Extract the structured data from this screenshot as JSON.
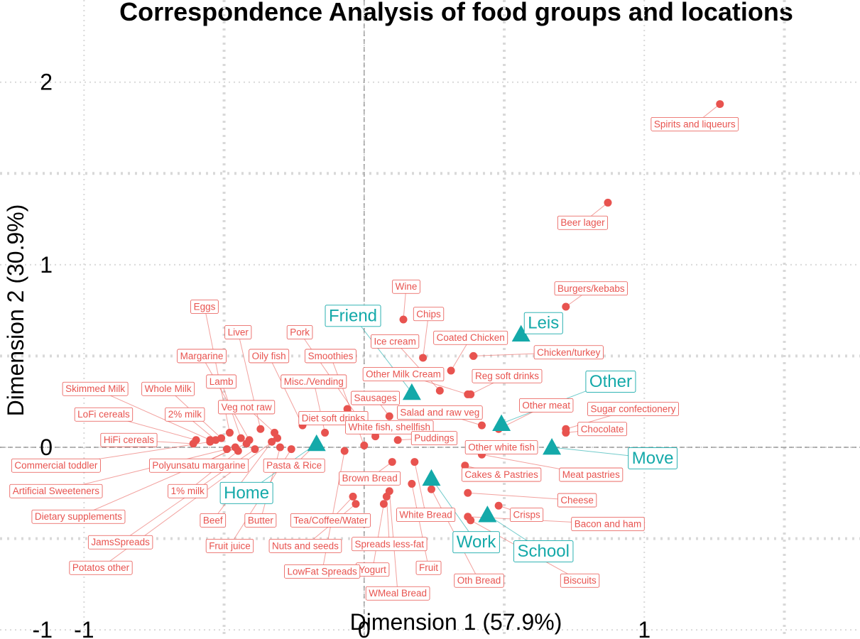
{
  "chart_data": {
    "type": "scatter",
    "title": "Correspondence Analysis of food groups and locations",
    "xlabel": "Dimension 1 (57.9%)",
    "ylabel": "Dimension 2 (30.9%)",
    "xlim": [
      -1.3,
      1.77
    ],
    "ylim": [
      -1.05,
      2.45
    ],
    "xticks": [
      -1,
      0,
      1
    ],
    "xtick_labels": [
      "-1",
      "0",
      "1"
    ],
    "yticks": [
      -1,
      0,
      1,
      2
    ],
    "ytick_labels": [
      "-1",
      "0",
      "1",
      "2"
    ],
    "grid": true,
    "zero_lines": true,
    "colors": {
      "rows": "#e8534f",
      "columns": "#14a9a9",
      "grid": "#d9d9d9",
      "zero_line": "#8a8a8a"
    },
    "series": [
      {
        "name": "rows",
        "marker": "circle",
        "points": [
          {
            "label": "Spirits and liqueurs",
            "x": 1.27,
            "y": 1.88,
            "lx": 1.18,
            "ly": 1.77
          },
          {
            "label": "Beer lager",
            "x": 0.87,
            "y": 1.34,
            "lx": 0.78,
            "ly": 1.23
          },
          {
            "label": "Burgers/kebabs",
            "x": 0.72,
            "y": 0.77,
            "lx": 0.81,
            "ly": 0.87
          },
          {
            "label": "Wine",
            "x": 0.14,
            "y": 0.7,
            "lx": 0.15,
            "ly": 0.88
          },
          {
            "label": "Chips",
            "x": 0.21,
            "y": 0.49,
            "lx": 0.23,
            "ly": 0.73
          },
          {
            "label": "Coated Chicken",
            "x": 0.31,
            "y": 0.42,
            "lx": 0.38,
            "ly": 0.6
          },
          {
            "label": "Ice cream",
            "x": 0.27,
            "y": 0.31,
            "lx": 0.11,
            "ly": 0.58
          },
          {
            "label": "Chicken/turkey",
            "x": 0.39,
            "y": 0.5,
            "lx": 0.73,
            "ly": 0.52
          },
          {
            "label": "Other Milk Cream",
            "x": 0.37,
            "y": 0.29,
            "lx": 0.14,
            "ly": 0.4
          },
          {
            "label": "Reg soft drinks",
            "x": 0.38,
            "y": 0.29,
            "lx": 0.51,
            "ly": 0.39
          },
          {
            "label": "Sausages",
            "x": 0.09,
            "y": 0.17,
            "lx": 0.04,
            "ly": 0.27
          },
          {
            "label": "Other meat",
            "x": 0.48,
            "y": 0.1,
            "lx": 0.65,
            "ly": 0.23
          },
          {
            "label": "Salad and raw veg",
            "x": 0.42,
            "y": 0.12,
            "lx": 0.27,
            "ly": 0.19
          },
          {
            "label": "Sugar confectionery",
            "x": 0.72,
            "y": 0.1,
            "lx": 0.96,
            "ly": 0.21
          },
          {
            "label": "Chocolate",
            "x": 0.72,
            "y": 0.08,
            "lx": 0.85,
            "ly": 0.1
          },
          {
            "label": "Diet soft drinks",
            "x": -0.06,
            "y": 0.21,
            "lx": -0.11,
            "ly": 0.16
          },
          {
            "label": "White fish, shellfish",
            "x": 0.04,
            "y": 0.06,
            "lx": 0.09,
            "ly": 0.11
          },
          {
            "label": "Puddings",
            "x": 0.12,
            "y": 0.04,
            "lx": 0.25,
            "ly": 0.05
          },
          {
            "label": "Other white fish",
            "x": 0.42,
            "y": -0.03,
            "lx": 0.49,
            "ly": 0.0
          },
          {
            "label": "Cakes & Pastries",
            "x": 0.36,
            "y": -0.1,
            "lx": 0.49,
            "ly": -0.15
          },
          {
            "label": "Meat pastries",
            "x": 0.42,
            "y": -0.04,
            "lx": 0.81,
            "ly": -0.15
          },
          {
            "label": "Cheese",
            "x": 0.37,
            "y": -0.25,
            "lx": 0.76,
            "ly": -0.29
          },
          {
            "label": "Crisps",
            "x": 0.48,
            "y": -0.32,
            "lx": 0.58,
            "ly": -0.37
          },
          {
            "label": "Bacon and ham",
            "x": 0.37,
            "y": -0.38,
            "lx": 0.87,
            "ly": -0.42
          },
          {
            "label": "Biscuits",
            "x": 0.38,
            "y": -0.4,
            "lx": 0.77,
            "ly": -0.73
          },
          {
            "label": "Oth Bread",
            "x": 0.24,
            "y": -0.23,
            "lx": 0.41,
            "ly": -0.73
          },
          {
            "label": "Fruit",
            "x": 0.17,
            "y": -0.2,
            "lx": 0.23,
            "ly": -0.66
          },
          {
            "label": "White Bread",
            "x": 0.18,
            "y": -0.08,
            "lx": 0.22,
            "ly": -0.37
          },
          {
            "label": "Brown Bread",
            "x": 0.1,
            "y": -0.08,
            "lx": 0.02,
            "ly": -0.17
          },
          {
            "label": "Spreads less-fat",
            "x": 0.08,
            "y": -0.27,
            "lx": 0.09,
            "ly": -0.53
          },
          {
            "label": "WMeal Bread",
            "x": 0.09,
            "y": -0.24,
            "lx": 0.12,
            "ly": -0.8
          },
          {
            "label": "Yogurt",
            "x": 0.07,
            "y": -0.31,
            "lx": 0.03,
            "ly": -0.67
          },
          {
            "label": "Tea/Coffee/Water",
            "x": -0.04,
            "y": -0.27,
            "lx": -0.12,
            "ly": -0.4
          },
          {
            "label": "Nuts and seeds",
            "x": -0.03,
            "y": -0.31,
            "lx": -0.21,
            "ly": -0.54
          },
          {
            "label": "LowFat Spreads",
            "x": -0.07,
            "y": -0.02,
            "lx": -0.15,
            "ly": -0.68
          },
          {
            "label": "Pasta & Rice",
            "x": -0.17,
            "y": 0.02,
            "lx": -0.25,
            "ly": -0.1
          },
          {
            "label": "Pork",
            "x": -0.02,
            "y": 0.16,
            "lx": -0.23,
            "ly": 0.63
          },
          {
            "label": "Smoothies",
            "x": 0.0,
            "y": 0.01,
            "lx": -0.12,
            "ly": 0.5
          },
          {
            "label": "Misc./Vending",
            "x": -0.14,
            "y": 0.08,
            "lx": -0.18,
            "ly": 0.36
          },
          {
            "label": "Oily fish",
            "x": -0.22,
            "y": 0.12,
            "lx": -0.34,
            "ly": 0.5
          },
          {
            "label": "Liver",
            "x": -0.37,
            "y": 0.1,
            "lx": -0.45,
            "ly": 0.63
          },
          {
            "label": "Eggs",
            "x": -0.48,
            "y": 0.08,
            "lx": -0.57,
            "ly": 0.77
          },
          {
            "label": "Margarine",
            "x": -0.41,
            "y": 0.04,
            "lx": -0.58,
            "ly": 0.5
          },
          {
            "label": "Lamb",
            "x": -0.44,
            "y": 0.05,
            "lx": -0.51,
            "ly": 0.36
          },
          {
            "label": "Veg not raw",
            "x": -0.32,
            "y": 0.08,
            "lx": -0.42,
            "ly": 0.22
          },
          {
            "label": "Skimmed Milk",
            "x": -0.55,
            "y": 0.04,
            "lx": -0.96,
            "ly": 0.32
          },
          {
            "label": "Whole Milk",
            "x": -0.51,
            "y": 0.05,
            "lx": -0.7,
            "ly": 0.32
          },
          {
            "label": "LoFi cereals",
            "x": -0.6,
            "y": 0.04,
            "lx": -0.93,
            "ly": 0.18
          },
          {
            "label": "2% milk",
            "x": -0.53,
            "y": 0.04,
            "lx": -0.64,
            "ly": 0.18
          },
          {
            "label": "HiFi cereals",
            "x": -0.61,
            "y": 0.02,
            "lx": -0.84,
            "ly": 0.04
          },
          {
            "label": "Polyunsatu margarine",
            "x": -0.46,
            "y": 0.0,
            "lx": -0.59,
            "ly": -0.1
          },
          {
            "label": "Commercial toddler",
            "x": -0.55,
            "y": 0.03,
            "lx": -1.1,
            "ly": -0.1
          },
          {
            "label": "1% milk",
            "x": -0.45,
            "y": -0.02,
            "lx": -0.63,
            "ly": -0.24
          },
          {
            "label": "Artificial Sweeteners",
            "x": -0.49,
            "y": -0.01,
            "lx": -1.1,
            "ly": -0.24
          },
          {
            "label": "Dietary supplements",
            "x": -0.42,
            "y": 0.02,
            "lx": -1.02,
            "ly": -0.38
          },
          {
            "label": "Beef",
            "x": -0.33,
            "y": 0.03,
            "lx": -0.54,
            "ly": -0.4
          },
          {
            "label": "Butter",
            "x": -0.3,
            "y": 0.0,
            "lx": -0.37,
            "ly": -0.4
          },
          {
            "label": "JamsSpreads",
            "x": -0.39,
            "y": -0.01,
            "lx": -0.87,
            "ly": -0.52
          },
          {
            "label": "Fruit juice",
            "x": -0.26,
            "y": -0.01,
            "lx": -0.48,
            "ly": -0.54
          },
          {
            "label": "Potatos other",
            "x": -0.31,
            "y": 0.05,
            "lx": -0.94,
            "ly": -0.66
          }
        ]
      },
      {
        "name": "columns",
        "marker": "triangle",
        "points": [
          {
            "label": "Friend",
            "x": 0.17,
            "y": 0.3,
            "lx": -0.04,
            "ly": 0.72
          },
          {
            "label": "Leis",
            "x": 0.56,
            "y": 0.62,
            "lx": 0.64,
            "ly": 0.68
          },
          {
            "label": "Other",
            "x": 0.49,
            "y": 0.13,
            "lx": 0.88,
            "ly": 0.36
          },
          {
            "label": "Move",
            "x": 0.67,
            "y": 0.0,
            "lx": 1.03,
            "ly": -0.06
          },
          {
            "label": "Home",
            "x": -0.17,
            "y": 0.02,
            "lx": -0.42,
            "ly": -0.25
          },
          {
            "label": "Work",
            "x": 0.24,
            "y": -0.17,
            "lx": 0.4,
            "ly": -0.52
          },
          {
            "label": "School",
            "x": 0.44,
            "y": -0.37,
            "lx": 0.64,
            "ly": -0.57
          }
        ]
      }
    ]
  }
}
